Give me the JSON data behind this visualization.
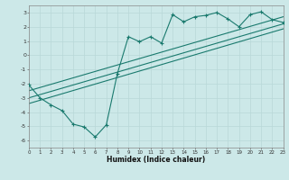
{
  "title": "",
  "xlabel": "Humidex (Indice chaleur)",
  "ylabel": "",
  "bg_color": "#cce8e8",
  "line_color": "#1a7a6e",
  "grid_color": "#b8d8d8",
  "xlim": [
    0,
    23
  ],
  "ylim": [
    -6.5,
    3.5
  ],
  "xticks": [
    0,
    1,
    2,
    3,
    4,
    5,
    6,
    7,
    8,
    9,
    10,
    11,
    12,
    13,
    14,
    15,
    16,
    17,
    18,
    19,
    20,
    21,
    22,
    23
  ],
  "yticks": [
    -6,
    -5,
    -4,
    -3,
    -2,
    -1,
    0,
    1,
    2,
    3
  ],
  "zigzag_x": [
    0,
    1,
    2,
    3,
    4,
    5,
    6,
    7,
    8,
    9,
    10,
    11,
    12,
    13,
    14,
    15,
    16,
    17,
    18,
    19,
    20,
    21,
    22,
    23
  ],
  "zigzag_y": [
    -2.1,
    -3.0,
    -3.5,
    -3.9,
    -4.85,
    -5.05,
    -5.75,
    -4.9,
    -1.3,
    1.3,
    0.95,
    1.3,
    0.85,
    2.85,
    2.35,
    2.7,
    2.8,
    3.0,
    2.55,
    2.0,
    2.85,
    3.05,
    2.5,
    2.3
  ],
  "line1_x": [
    0,
    23
  ],
  "line1_y": [
    -2.5,
    2.7
  ],
  "line2_x": [
    0,
    23
  ],
  "line2_y": [
    -3.0,
    2.2
  ],
  "line3_x": [
    0,
    23
  ],
  "line3_y": [
    -3.4,
    1.85
  ]
}
